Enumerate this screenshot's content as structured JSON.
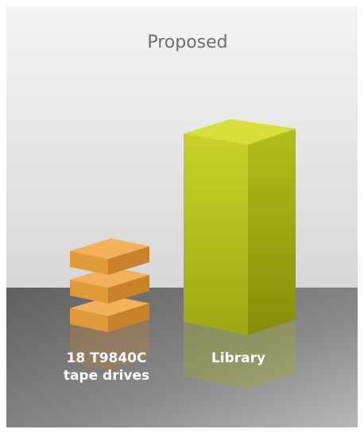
{
  "title": "Proposed",
  "items": [
    {
      "label": [
        "18 T9840C",
        "tape drives"
      ]
    },
    {
      "label": [
        "Library"
      ]
    }
  ]
}
